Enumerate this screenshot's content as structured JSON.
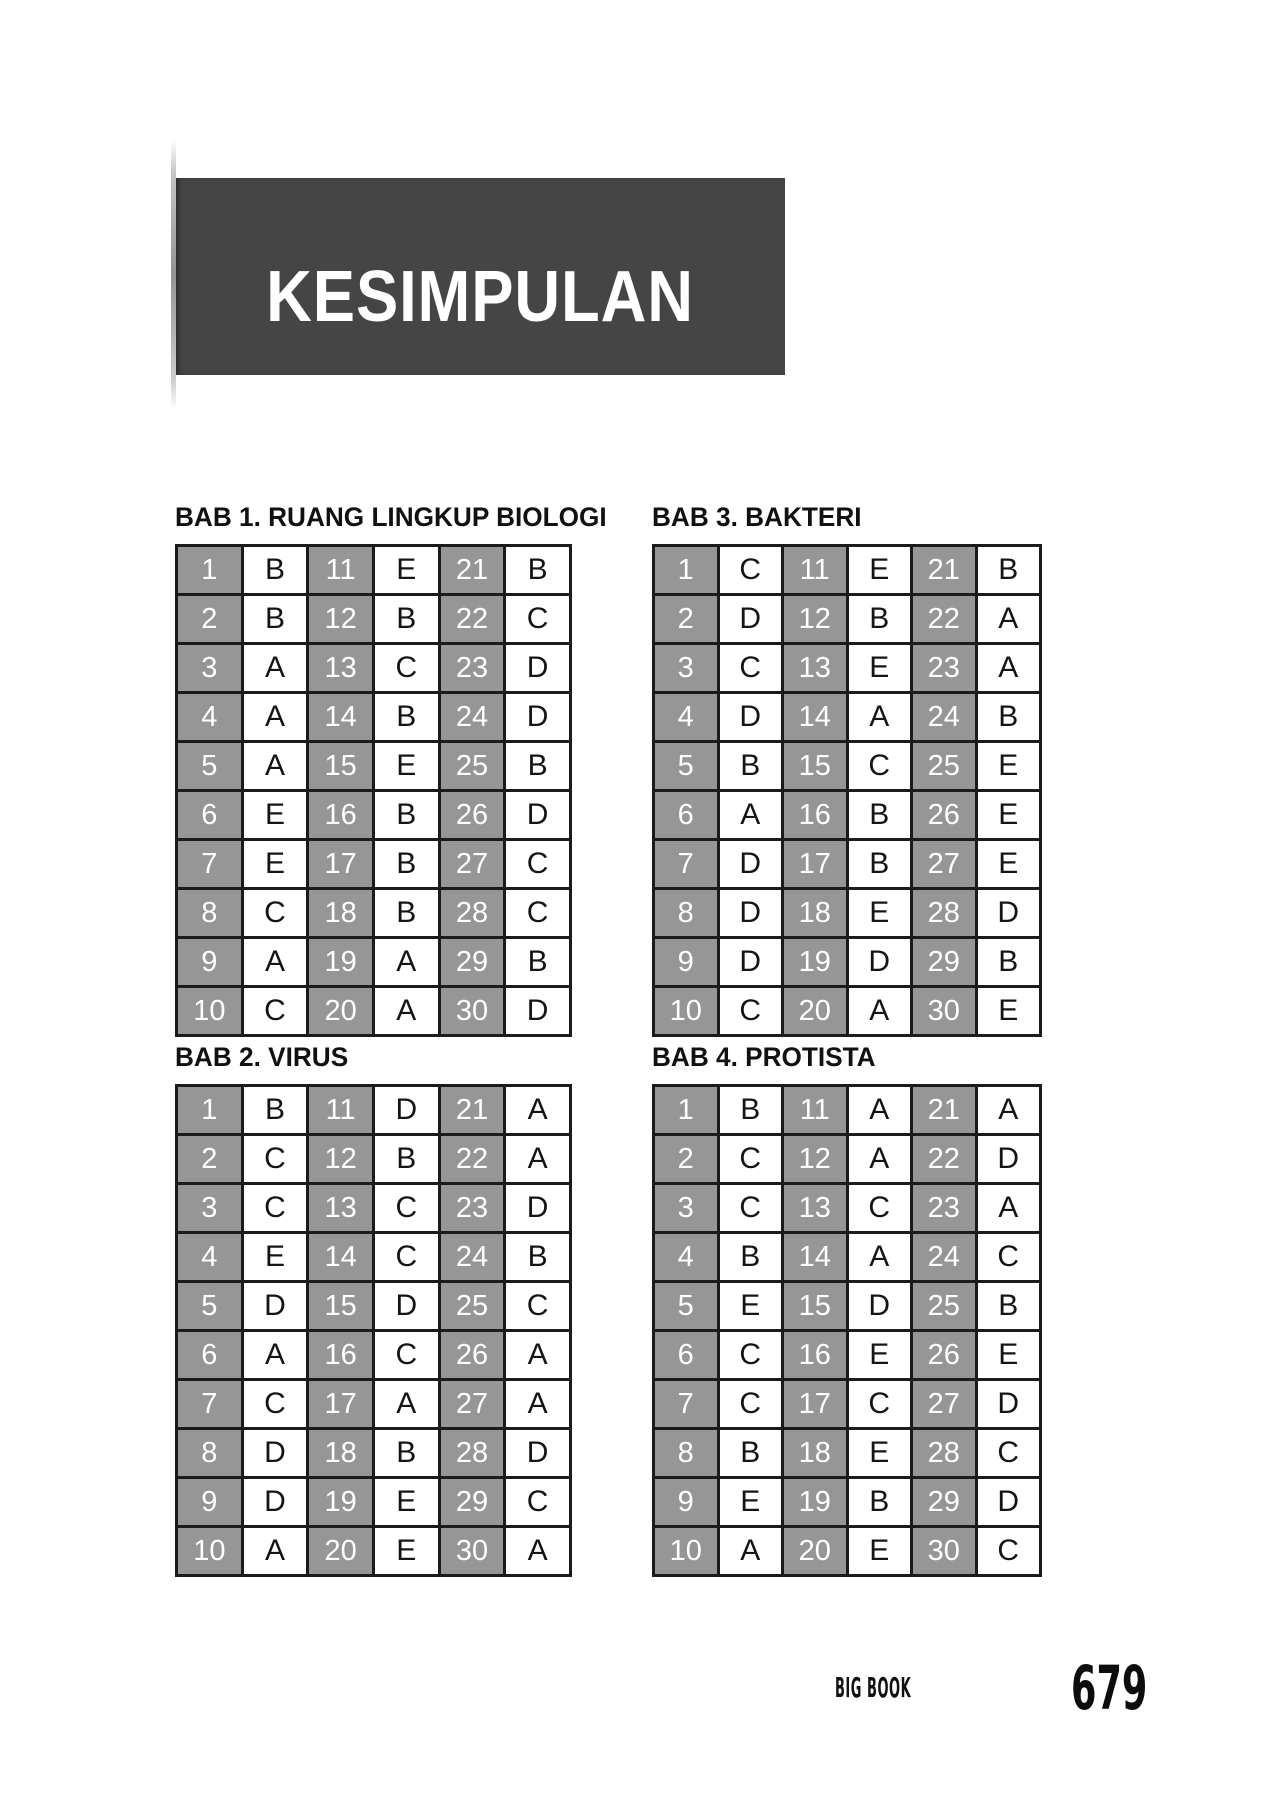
{
  "page": {
    "banner_title": "KESIMPULAN"
  },
  "footer": {
    "brand": "BIG BOOK",
    "page_number": "679"
  },
  "colors": {
    "banner_bg": "#454545",
    "banner_fg": "#ffffff",
    "number_cell_bg": "#969696",
    "grid_line": "#1b1b1b"
  },
  "tables": [
    {
      "title": "BAB 1. RUANG LINGKUP BIOLOGI",
      "rows": [
        [
          "1",
          "B",
          "11",
          "E",
          "21",
          "B"
        ],
        [
          "2",
          "B",
          "12",
          "B",
          "22",
          "C"
        ],
        [
          "3",
          "A",
          "13",
          "C",
          "23",
          "D"
        ],
        [
          "4",
          "A",
          "14",
          "B",
          "24",
          "D"
        ],
        [
          "5",
          "A",
          "15",
          "E",
          "25",
          "B"
        ],
        [
          "6",
          "E",
          "16",
          "B",
          "26",
          "D"
        ],
        [
          "7",
          "E",
          "17",
          "B",
          "27",
          "C"
        ],
        [
          "8",
          "C",
          "18",
          "B",
          "28",
          "C"
        ],
        [
          "9",
          "A",
          "19",
          "A",
          "29",
          "B"
        ],
        [
          "10",
          "C",
          "20",
          "A",
          "30",
          "D"
        ]
      ]
    },
    {
      "title": "BAB 2. VIRUS",
      "rows": [
        [
          "1",
          "B",
          "11",
          "D",
          "21",
          "A"
        ],
        [
          "2",
          "C",
          "12",
          "B",
          "22",
          "A"
        ],
        [
          "3",
          "C",
          "13",
          "C",
          "23",
          "D"
        ],
        [
          "4",
          "E",
          "14",
          "C",
          "24",
          "B"
        ],
        [
          "5",
          "D",
          "15",
          "D",
          "25",
          "C"
        ],
        [
          "6",
          "A",
          "16",
          "C",
          "26",
          "A"
        ],
        [
          "7",
          "C",
          "17",
          "A",
          "27",
          "A"
        ],
        [
          "8",
          "D",
          "18",
          "B",
          "28",
          "D"
        ],
        [
          "9",
          "D",
          "19",
          "E",
          "29",
          "C"
        ],
        [
          "10",
          "A",
          "20",
          "E",
          "30",
          "A"
        ]
      ]
    },
    {
      "title": "BAB 3. BAKTERI",
      "rows": [
        [
          "1",
          "C",
          "11",
          "E",
          "21",
          "B"
        ],
        [
          "2",
          "D",
          "12",
          "B",
          "22",
          "A"
        ],
        [
          "3",
          "C",
          "13",
          "E",
          "23",
          "A"
        ],
        [
          "4",
          "D",
          "14",
          "A",
          "24",
          "B"
        ],
        [
          "5",
          "B",
          "15",
          "C",
          "25",
          "E"
        ],
        [
          "6",
          "A",
          "16",
          "B",
          "26",
          "E"
        ],
        [
          "7",
          "D",
          "17",
          "B",
          "27",
          "E"
        ],
        [
          "8",
          "D",
          "18",
          "E",
          "28",
          "D"
        ],
        [
          "9",
          "D",
          "19",
          "D",
          "29",
          "B"
        ],
        [
          "10",
          "C",
          "20",
          "A",
          "30",
          "E"
        ]
      ]
    },
    {
      "title": "BAB 4. PROTISTA",
      "rows": [
        [
          "1",
          "B",
          "11",
          "A",
          "21",
          "A"
        ],
        [
          "2",
          "C",
          "12",
          "A",
          "22",
          "D"
        ],
        [
          "3",
          "C",
          "13",
          "C",
          "23",
          "A"
        ],
        [
          "4",
          "B",
          "14",
          "A",
          "24",
          "C"
        ],
        [
          "5",
          "E",
          "15",
          "D",
          "25",
          "B"
        ],
        [
          "6",
          "C",
          "16",
          "E",
          "26",
          "E"
        ],
        [
          "7",
          "C",
          "17",
          "C",
          "27",
          "D"
        ],
        [
          "8",
          "B",
          "18",
          "E",
          "28",
          "C"
        ],
        [
          "9",
          "E",
          "19",
          "B",
          "29",
          "D"
        ],
        [
          "10",
          "A",
          "20",
          "E",
          "30",
          "C"
        ]
      ]
    }
  ]
}
